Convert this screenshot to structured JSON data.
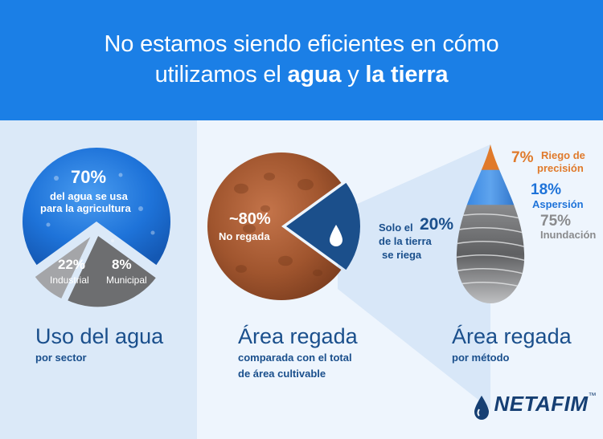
{
  "header": {
    "title_part1": "No estamos siendo eficientes en cómo",
    "title_part2": "utilizamos el ",
    "title_bold1": "agua",
    "title_and": " y ",
    "title_bold2": "la tierra"
  },
  "chart_data": [
    {
      "type": "pie",
      "slices": [
        {
          "label": "del agua se usa para la agricultura",
          "value": 70,
          "display": "70%",
          "color": "#1e73d9"
        },
        {
          "label": "Industrial",
          "value": 22,
          "display": "22%",
          "color": "#6d6e70"
        },
        {
          "label": "Municipal",
          "value": 8,
          "display": "8%",
          "color": "#a4a5a8"
        }
      ],
      "caption": "Uso del agua",
      "subcaption": "por sector",
      "agri_line1": "del agua se usa",
      "agri_line2": "para la agricultura"
    },
    {
      "type": "pie",
      "slices": [
        {
          "label": "No regada",
          "value": 80,
          "display": "~80%",
          "color": "#a0552e"
        },
        {
          "label": "Solo el 20% de la tierra se riega",
          "value": 20,
          "display": "20%",
          "color": "#1b4f8b"
        }
      ],
      "caption": "Área regada",
      "subcaption_line1": "comparada con el total",
      "subcaption_line2": "de área cultivable",
      "callout_pre": "Solo el",
      "callout_line2": "de la tierra",
      "callout_line3": "se riega"
    },
    {
      "type": "bar",
      "categories": [
        "Riego de precisión",
        "Aspersión",
        "Inundación"
      ],
      "values": [
        7,
        18,
        75
      ],
      "colors": [
        "#e07a2b",
        "#1e73d9",
        "#6d6e70"
      ],
      "caption": "Área regada",
      "subcaption": "por método",
      "precision_line1": "Riego de",
      "precision_line2": "precisión"
    }
  ],
  "logo": {
    "name": "NETAFIM",
    "tm": "™"
  },
  "colors": {
    "brand": "#1b7fe6",
    "navy": "#1a4f8c",
    "orange": "#e07a2b"
  }
}
